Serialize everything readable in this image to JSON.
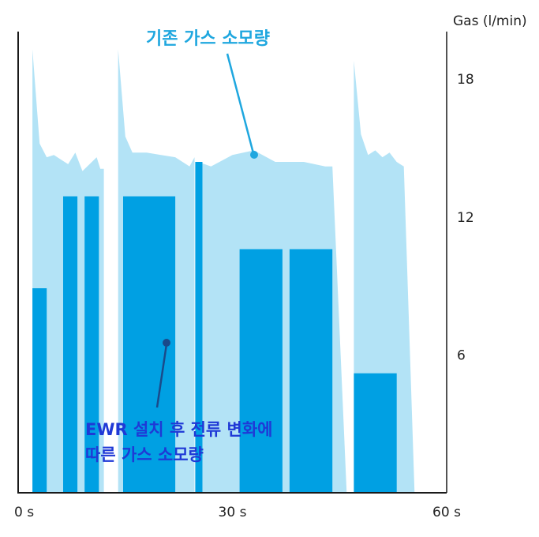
{
  "chart_data": {
    "type": "area",
    "x_unit": "s",
    "y_unit": "Gas (l/min)",
    "xlim": [
      0,
      60
    ],
    "ylim": [
      0,
      20
    ],
    "x_ticks": [
      "0 s",
      "30 s",
      "60 s"
    ],
    "x_tick_values": [
      0,
      30,
      60
    ],
    "y_ticks": [
      "18",
      "12",
      "6"
    ],
    "y_tick_values": [
      18,
      12,
      6
    ],
    "grid": false,
    "series": [
      {
        "name": "기존 가스 소모량",
        "color": "#b3e3f6",
        "segments": [
          {
            "x": [
              2.0,
              2.0,
              3.0,
              4.0,
              5.0,
              6.0,
              7.0,
              8.0,
              9.0,
              10.0,
              11.0,
              11.5,
              12.0,
              12.0
            ],
            "y": [
              0,
              19.3,
              15.2,
              14.6,
              14.7,
              14.5,
              14.3,
              14.8,
              14.0,
              14.3,
              14.6,
              14.1,
              14.1,
              0
            ]
          },
          {
            "x": [
              14.0,
              14.0,
              15.0,
              16.0,
              18.0,
              20.0,
              22.0,
              24.0,
              24.7,
              24.7
            ],
            "y": [
              0,
              19.3,
              15.5,
              14.8,
              14.8,
              14.7,
              14.6,
              14.2,
              14.6,
              0
            ]
          },
          {
            "x": [
              25.2,
              25.2,
              27.0,
              30.0,
              33.0,
              36.0,
              40.0,
              43.0,
              44.0,
              46.0
            ],
            "y": [
              0,
              14.4,
              14.2,
              14.7,
              14.9,
              14.4,
              14.4,
              14.2,
              14.2,
              0
            ]
          },
          {
            "x": [
              47.0,
              47.0,
              48.0,
              49.0,
              50.0,
              51.0,
              52.0,
              53.0,
              54.0,
              55.5
            ],
            "y": [
              0,
              18.8,
              15.6,
              14.7,
              14.9,
              14.6,
              14.8,
              14.4,
              14.2,
              0
            ]
          }
        ]
      },
      {
        "name": "EWR 설치 후 전류 변화에 따른 가스 소모량",
        "color": "#00a0e3",
        "bars": [
          {
            "x0": 2.0,
            "x1": 4.0,
            "y": 8.9
          },
          {
            "x0": 6.3,
            "x1": 8.3,
            "y": 12.9
          },
          {
            "x0": 9.3,
            "x1": 11.3,
            "y": 12.9
          },
          {
            "x0": 14.7,
            "x1": 22.0,
            "y": 12.9
          },
          {
            "x0": 24.8,
            "x1": 25.8,
            "y": 14.4
          },
          {
            "x0": 31.0,
            "x1": 37.0,
            "y": 10.6
          },
          {
            "x0": 38.0,
            "x1": 44.0,
            "y": 10.6
          },
          {
            "x0": 47.0,
            "x1": 53.0,
            "y": 5.2
          }
        ]
      }
    ],
    "annotations": [
      {
        "text": "기존 가스 소모량",
        "target_series": 0
      },
      {
        "text_lines": [
          "EWR 설치 후 전류 변화에",
          "따른 가스 소모량"
        ],
        "target_series": 1
      }
    ]
  },
  "labels": {
    "y_unit": "Gas (l/min)",
    "annotation_top": "기존 가스 소모량",
    "annotation_bottom_1": "EWR 설치 후 전류 변화에",
    "annotation_bottom_2": "따른 가스 소모량"
  },
  "colors": {
    "axis": "#1a1a1a",
    "light_area": "#b3e3f6",
    "dark_bar": "#00a0e3",
    "annotation_top": "#1fa7df",
    "annotation_bottom": "#1f39d6",
    "pointer_top": "#1fa7df",
    "pointer_bottom": "#1a4a8a"
  }
}
